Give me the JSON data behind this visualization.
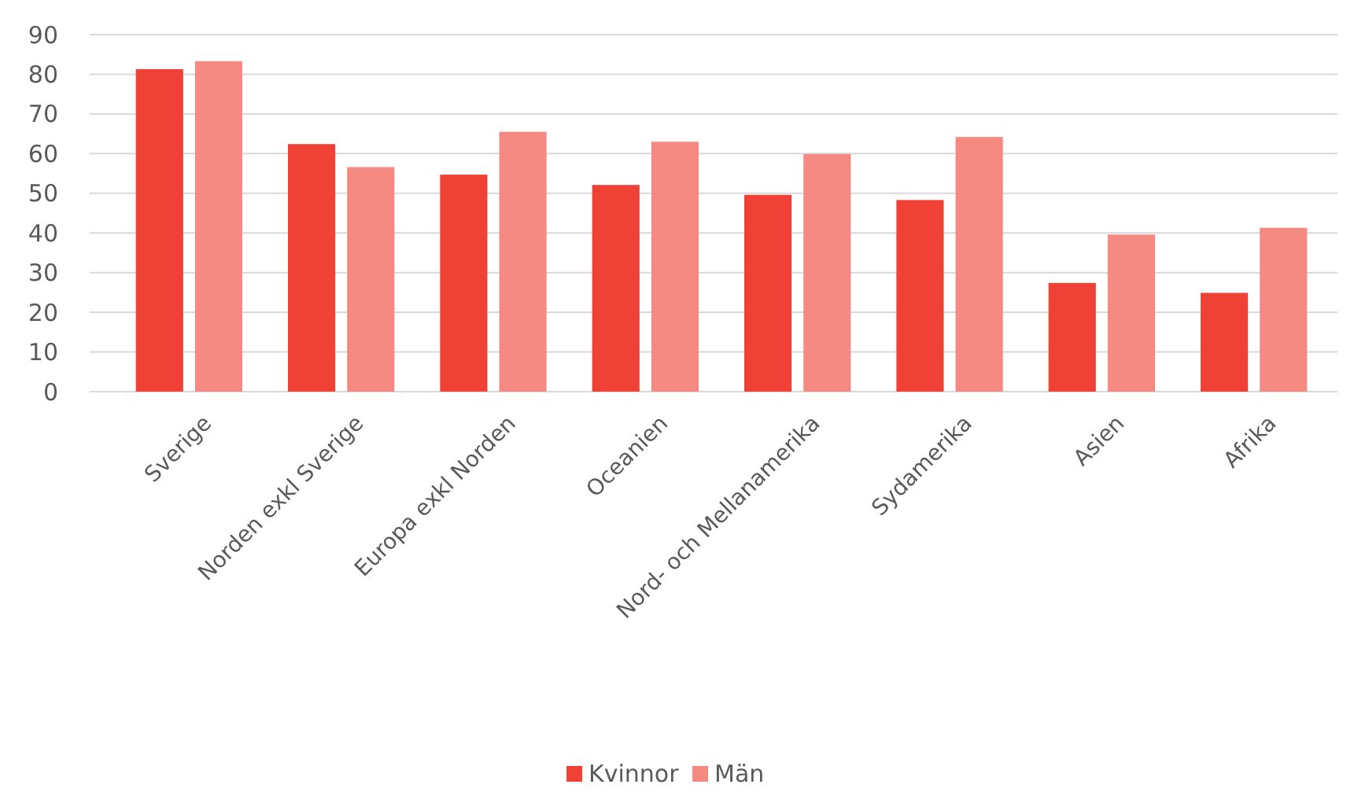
{
  "chart_data": {
    "type": "bar",
    "categories": [
      "Sverige",
      "Norden exkl Sverige",
      "Europa exkl Norden",
      "Oceanien",
      "Nord- och Mellanamerika",
      "Sydamerika",
      "Asien",
      "Afrika"
    ],
    "series": [
      {
        "name": "Kvinnor",
        "color": "#ef4136",
        "values": [
          81.3,
          62.4,
          54.7,
          52.1,
          49.6,
          48.3,
          27.4,
          24.9
        ]
      },
      {
        "name": "Män",
        "color": "#f58a83",
        "values": [
          83.3,
          56.6,
          65.5,
          63.0,
          59.9,
          64.2,
          39.6,
          41.3
        ]
      }
    ],
    "ylim": [
      0,
      90
    ],
    "yticks": [
      0,
      10,
      20,
      30,
      40,
      50,
      60,
      70,
      80,
      90
    ],
    "grid": "y",
    "legend": "bottom"
  }
}
